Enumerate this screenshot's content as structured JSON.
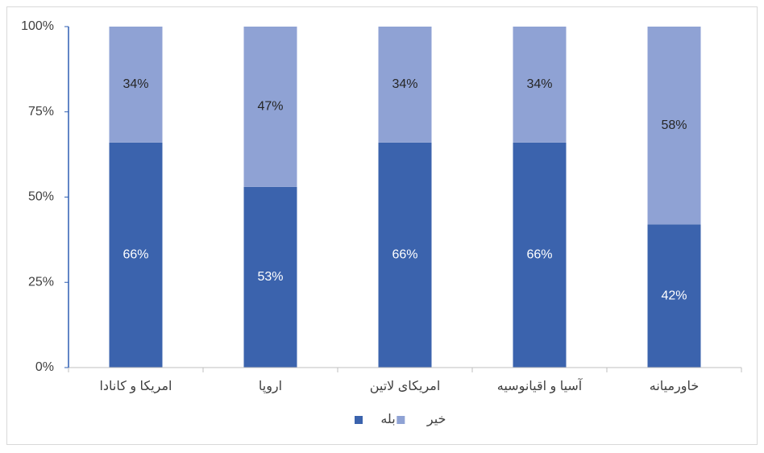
{
  "chart_data": {
    "type": "stacked-bar",
    "categories": [
      "امریکا و کانادا",
      "اروپا",
      "امریکای لاتین",
      "آسیا و اقیانوسیه",
      "خاورمیانه"
    ],
    "series": [
      {
        "name": "بله",
        "color": "#3b63ad",
        "values": [
          66,
          53,
          66,
          66,
          42
        ],
        "value_labels": [
          "66%",
          "53%",
          "66%",
          "66%",
          "42%"
        ]
      },
      {
        "name": "خیر",
        "color": "#8fa2d4",
        "values": [
          34,
          47,
          34,
          34,
          58
        ],
        "value_labels": [
          "34%",
          "47%",
          "34%",
          "34%",
          "58%"
        ]
      }
    ],
    "ylim": [
      0,
      100
    ],
    "yticks": [
      {
        "value": 0,
        "label": "0%"
      },
      {
        "value": 25,
        "label": "25%"
      },
      {
        "value": 50,
        "label": "50%"
      },
      {
        "value": 75,
        "label": "75%"
      },
      {
        "value": 100,
        "label": "100%"
      }
    ],
    "grid": false,
    "legend": "bottom"
  }
}
